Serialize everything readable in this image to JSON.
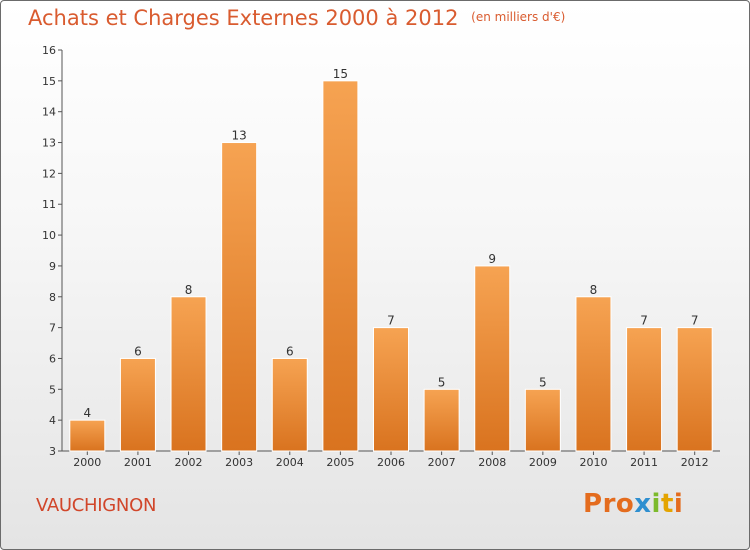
{
  "header": {
    "title": "Achats et Charges Externes 2000 à 2012",
    "subtitle": "(en milliers d'€)"
  },
  "footer": {
    "commune": "VAUCHIGNON",
    "logo_letters": [
      "P",
      "r",
      "o",
      "x",
      "i",
      "t",
      "i"
    ],
    "logo_colors": [
      "#e46c1e",
      "#e46c1e",
      "#e46c1e",
      "#2e8fd0",
      "#7cba2c",
      "#e4a400",
      "#e46c1e"
    ]
  },
  "colors": {
    "bar_top": "#f6a352",
    "bar_bottom": "#d9731f",
    "title": "#d95b2f",
    "commune": "#d1462a"
  },
  "chart_data": {
    "type": "bar",
    "title": "Achats et Charges Externes 2000 à 2012",
    "subtitle": "(en milliers d'€)",
    "categories": [
      "2000",
      "2001",
      "2002",
      "2003",
      "2004",
      "2005",
      "2006",
      "2007",
      "2008",
      "2009",
      "2010",
      "2011",
      "2012"
    ],
    "values": [
      4,
      6,
      8,
      13,
      6,
      15,
      7,
      5,
      9,
      5,
      8,
      7,
      7
    ],
    "ylim": [
      3,
      16
    ],
    "yticks": [
      3,
      4,
      5,
      6,
      7,
      8,
      9,
      10,
      11,
      12,
      13,
      14,
      15,
      16
    ],
    "grid": false
  }
}
